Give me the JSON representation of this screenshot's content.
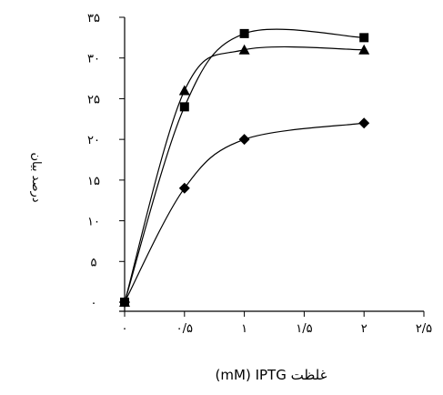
{
  "chart_data": {
    "type": "line",
    "title": "",
    "xlabel": "(mM) IPTG   غلظت",
    "ylabel": "درصد بیان",
    "xlim": [
      0,
      2.5
    ],
    "ylim": [
      0,
      35
    ],
    "x_ticks": [
      0,
      0.5,
      1,
      1.5,
      2,
      2.5
    ],
    "x_tick_labels": [
      "۰",
      "۰/۵",
      "۱",
      "۱/۵",
      "۲",
      "۲/۵"
    ],
    "y_ticks": [
      0,
      5,
      10,
      15,
      20,
      25,
      30,
      35
    ],
    "y_tick_labels": [
      "۰",
      "۵",
      "۱۰",
      "۱۵",
      "۲۰",
      "۲۵",
      "۳۰",
      "۳۵"
    ],
    "grid": false,
    "legend": false,
    "series": [
      {
        "marker": "square",
        "color": "#000000",
        "x": [
          0,
          0.5,
          1,
          2
        ],
        "y": [
          0,
          24,
          33,
          32.5
        ]
      },
      {
        "marker": "triangle",
        "color": "#000000",
        "x": [
          0,
          0.5,
          1,
          2
        ],
        "y": [
          0,
          26,
          31,
          31
        ]
      },
      {
        "marker": "diamond",
        "color": "#000000",
        "x": [
          0,
          0.5,
          1,
          2
        ],
        "y": [
          0,
          14,
          20,
          22
        ]
      }
    ]
  }
}
